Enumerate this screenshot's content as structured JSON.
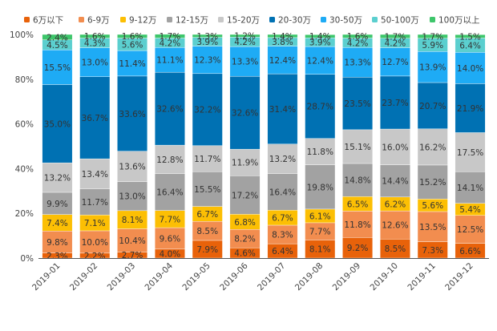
{
  "chart_data": {
    "type": "bar",
    "stacked": true,
    "normalized": true,
    "title": "",
    "xlabel": "",
    "ylabel": "",
    "ylim": [
      0,
      100
    ],
    "y_ticks": [
      "0%",
      "20%",
      "40%",
      "60%",
      "80%",
      "100%"
    ],
    "y_tick_values": [
      0,
      20,
      40,
      60,
      80,
      100
    ],
    "legend_position": "top",
    "grid": false,
    "categories": [
      "2019-01",
      "2019-02",
      "2019-03",
      "2019-04",
      "2019-05",
      "2019-06",
      "2019-07",
      "2019-08",
      "2019-09",
      "2019-10",
      "2019-11",
      "2019-12"
    ],
    "series": [
      {
        "name": "6万以下",
        "color": "#e8620a",
        "values": [
          2.3,
          2.2,
          2.7,
          4.0,
          7.9,
          4.6,
          6.4,
          8.1,
          9.2,
          8.5,
          7.3,
          6.6
        ]
      },
      {
        "name": "6-9万",
        "color": "#f28d4f",
        "values": [
          9.8,
          10.0,
          10.4,
          9.6,
          8.5,
          8.2,
          8.3,
          7.7,
          11.8,
          12.6,
          13.5,
          12.5
        ]
      },
      {
        "name": "9-12万",
        "color": "#fcbf04",
        "values": [
          7.4,
          7.1,
          8.1,
          7.7,
          6.7,
          6.8,
          6.7,
          6.1,
          6.5,
          6.2,
          5.6,
          5.4
        ]
      },
      {
        "name": "12-15万",
        "color": "#a2a2a2",
        "values": [
          9.9,
          11.7,
          13.0,
          16.4,
          15.5,
          17.2,
          16.4,
          19.8,
          14.8,
          14.4,
          15.2,
          14.1
        ]
      },
      {
        "name": "15-20万",
        "color": "#c8c8c8",
        "values": [
          13.2,
          13.4,
          13.6,
          12.8,
          11.7,
          11.9,
          13.2,
          11.8,
          15.1,
          16.0,
          16.2,
          17.5
        ]
      },
      {
        "name": "20-30万",
        "color": "#0071b3",
        "values": [
          35.0,
          36.7,
          33.6,
          32.6,
          32.2,
          32.6,
          31.4,
          28.7,
          23.5,
          23.7,
          20.7,
          21.9
        ]
      },
      {
        "name": "30-50万",
        "color": "#1eabf5",
        "values": [
          15.5,
          13.0,
          11.4,
          11.1,
          12.3,
          13.3,
          12.4,
          12.4,
          13.3,
          12.7,
          13.9,
          14.0
        ]
      },
      {
        "name": "50-100万",
        "color": "#5bcfcf",
        "values": [
          4.5,
          4.3,
          5.6,
          4.2,
          3.9,
          4.2,
          3.8,
          3.9,
          4.2,
          4.2,
          5.9,
          6.4
        ]
      },
      {
        "name": "100万以上",
        "color": "#3ec66b",
        "values": [
          2.4,
          1.6,
          1.6,
          1.7,
          1.3,
          1.2,
          1.4,
          1.4,
          1.6,
          1.7,
          1.7,
          1.5
        ]
      }
    ],
    "label_format": "{value}%"
  }
}
